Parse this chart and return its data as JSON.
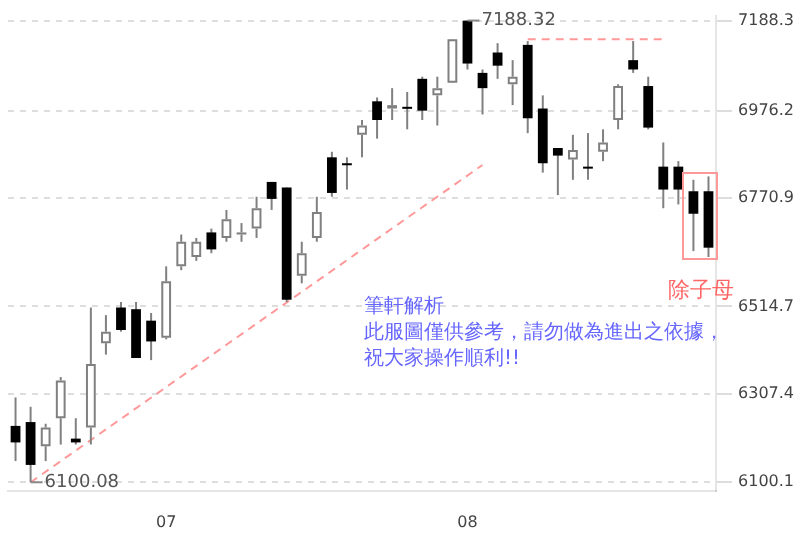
{
  "chart_data": {
    "type": "candlestick",
    "categories": [
      null,
      null,
      null,
      null,
      null,
      null,
      null,
      null,
      null,
      null,
      "07",
      null,
      null,
      null,
      null,
      null,
      null,
      null,
      null,
      null,
      null,
      null,
      null,
      null,
      null,
      null,
      null,
      null,
      null,
      null,
      "08",
      null,
      null,
      null,
      null,
      null,
      null,
      null,
      null,
      null,
      null,
      null,
      null,
      null,
      null,
      null,
      null
    ],
    "ohlc": [
      [
        6233,
        6300,
        6150,
        6194
      ],
      [
        6242,
        6278,
        6100.08,
        6141
      ],
      [
        6185,
        6238,
        6150,
        6229
      ],
      [
        6251,
        6348,
        6189,
        6340
      ],
      [
        6203,
        6251,
        6189,
        6194
      ],
      [
        6229,
        6512,
        6189,
        6379
      ],
      [
        6428,
        6494,
        6401,
        6455
      ],
      [
        6512,
        6525,
        6455,
        6459
      ],
      [
        6508,
        6525,
        6393,
        6393
      ],
      [
        6481,
        6499,
        6388,
        6432
      ],
      [
        6441,
        6609,
        6437,
        6574
      ],
      [
        6609,
        6684,
        6600,
        6667
      ],
      [
        6631,
        6676,
        6622,
        6667
      ],
      [
        6689,
        6698,
        6640,
        6649
      ],
      [
        6676,
        6742,
        6667,
        6720
      ],
      [
        6684,
        6711,
        6667,
        6689
      ],
      [
        6698,
        6773,
        6676,
        6746
      ],
      [
        6808,
        6808,
        6742,
        6768
      ],
      [
        6795,
        6795,
        6525,
        6530
      ],
      [
        6587,
        6667,
        6569,
        6640
      ],
      [
        6676,
        6773,
        6667,
        6737
      ],
      [
        6866,
        6879,
        6773,
        6782
      ],
      [
        6852,
        6866,
        6790,
        6848
      ],
      [
        6919,
        6954,
        6866,
        6941
      ],
      [
        6998,
        7007,
        6910,
        6954
      ],
      [
        6981,
        7029,
        6954,
        6989
      ],
      [
        6985,
        7020,
        6932,
        6983
      ],
      [
        7051,
        7056,
        6954,
        6976
      ],
      [
        7012,
        7056,
        6941,
        7029
      ],
      [
        7042,
        7144,
        7042,
        7144
      ],
      [
        7188,
        7188.32,
        7073,
        7087
      ],
      [
        7065,
        7073,
        6967,
        7029
      ],
      [
        7113,
        7135,
        7051,
        7082
      ],
      [
        7038,
        7095,
        6989,
        7056
      ],
      [
        7131,
        7140,
        6923,
        6958
      ],
      [
        6981,
        7012,
        6830,
        6852
      ],
      [
        6888,
        6888,
        6777,
        6870
      ],
      [
        6861,
        6919,
        6813,
        6883
      ],
      [
        6844,
        6923,
        6813,
        6842
      ],
      [
        6879,
        6932,
        6857,
        6901
      ],
      [
        6954,
        7038,
        6932,
        7034
      ],
      [
        7095,
        7140,
        7065,
        7073
      ],
      [
        7034,
        7056,
        6932,
        6936
      ],
      [
        6844,
        6901,
        6746,
        6790
      ],
      [
        6844,
        6857,
        6755,
        6790
      ],
      [
        6786,
        6813,
        6645,
        6733
      ],
      [
        6786,
        6821,
        6631,
        6653
      ]
    ],
    "series": [
      {
        "type": "line",
        "color": "#ff9999",
        "line_style": "dashed",
        "values": [
          null,
          6100,
          null,
          null,
          null,
          null,
          null,
          null,
          null,
          null,
          null,
          null,
          null,
          null,
          null,
          null,
          null,
          null,
          null,
          null,
          null,
          null,
          null,
          null,
          null,
          null,
          null,
          null,
          null,
          null,
          null,
          6848,
          null,
          null,
          null,
          null,
          null,
          null,
          null,
          null,
          null,
          null,
          null,
          null,
          null,
          null,
          null
        ]
      },
      {
        "type": "line",
        "color": "#ff9999",
        "line_style": "dashed",
        "values": [
          null,
          null,
          null,
          null,
          null,
          null,
          null,
          null,
          null,
          null,
          null,
          null,
          null,
          null,
          null,
          null,
          null,
          null,
          null,
          null,
          null,
          null,
          null,
          null,
          null,
          null,
          null,
          null,
          null,
          null,
          null,
          null,
          null,
          null,
          7144,
          null,
          null,
          null,
          null,
          null,
          null,
          null,
          null,
          7144,
          null,
          null,
          null
        ]
      }
    ],
    "ylim": [
      6080,
      7200
    ],
    "yticks": [
      6100.1,
      6307.4,
      6514.7,
      6770.9,
      6976.2,
      7188.3
    ],
    "grid": "y",
    "legend": false,
    "annotations": [
      {
        "text": "7188.32",
        "x": "08",
        "y": 7188.32
      },
      "6100.08",
      "筆軒解析",
      "此服圖僅供參考，請勿做為進出之依據，",
      "祝大家操作順利!!",
      "除子母"
    ]
  }
}
